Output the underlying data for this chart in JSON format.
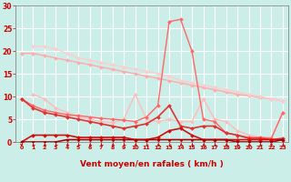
{
  "title": "",
  "xlabel": "Vent moyen/en rafales ( km/h )",
  "ylabel": "",
  "bg_color": "#cceee8",
  "grid_color": "#aadddd",
  "xlim": [
    -0.5,
    23.5
  ],
  "ylim": [
    0,
    30
  ],
  "yticks": [
    0,
    5,
    10,
    15,
    20,
    25,
    30
  ],
  "xticks": [
    0,
    1,
    2,
    3,
    4,
    5,
    6,
    7,
    8,
    9,
    10,
    11,
    12,
    13,
    14,
    15,
    16,
    17,
    18,
    19,
    20,
    21,
    22,
    23
  ],
  "lines": [
    {
      "x": [
        0,
        1,
        2,
        3,
        4,
        5,
        6,
        7,
        8,
        9,
        10,
        11,
        12,
        13,
        14,
        15,
        16,
        17,
        18,
        19,
        20,
        21,
        22,
        23
      ],
      "y": [
        19.5,
        19.5,
        19.0,
        18.5,
        18.0,
        17.5,
        17.0,
        16.5,
        16.0,
        15.5,
        15.0,
        14.5,
        14.0,
        13.5,
        13.0,
        12.5,
        12.0,
        11.5,
        11.0,
        10.5,
        10.2,
        9.8,
        9.5,
        9.0
      ],
      "color": "#ffaaaa",
      "lw": 1.0,
      "marker": "D",
      "ms": 2.0
    },
    {
      "x": [
        1,
        2,
        3,
        4,
        5,
        6,
        7,
        8,
        9,
        10,
        11,
        12,
        13,
        14,
        15,
        16,
        17,
        18,
        19,
        20,
        21,
        22,
        23
      ],
      "y": [
        21.0,
        21.0,
        20.5,
        19.5,
        18.5,
        18.0,
        17.5,
        17.0,
        16.5,
        16.0,
        15.5,
        15.0,
        14.5,
        13.5,
        13.0,
        12.5,
        12.0,
        11.5,
        11.0,
        10.5,
        10.0,
        9.5,
        9.0
      ],
      "color": "#ffcccc",
      "lw": 1.0,
      "marker": "D",
      "ms": 2.0
    },
    {
      "x": [
        1,
        2,
        3,
        4,
        5,
        6,
        7,
        8,
        9,
        10,
        11,
        12,
        13,
        14,
        15,
        16,
        17,
        18,
        19,
        20,
        21,
        22,
        23
      ],
      "y": [
        10.5,
        9.5,
        7.5,
        6.5,
        5.5,
        5.0,
        4.5,
        4.2,
        5.0,
        10.5,
        5.0,
        4.5,
        5.0,
        4.5,
        4.5,
        9.5,
        5.0,
        4.5,
        2.5,
        1.5,
        1.0,
        1.0,
        6.5
      ],
      "color": "#ffbbbb",
      "lw": 1.0,
      "marker": "D",
      "ms": 2.0
    },
    {
      "x": [
        0,
        1,
        2,
        3,
        4,
        5,
        6,
        7,
        8,
        9,
        10,
        11,
        12,
        13,
        14,
        15,
        16,
        17,
        18,
        19,
        20,
        21,
        22,
        23
      ],
      "y": [
        9.5,
        8.0,
        7.0,
        6.5,
        6.0,
        5.8,
        5.5,
        5.2,
        5.0,
        4.8,
        4.5,
        5.5,
        8.0,
        26.5,
        27.0,
        20.0,
        5.0,
        4.5,
        2.0,
        1.5,
        1.0,
        1.0,
        0.8,
        6.5
      ],
      "color": "#ff6666",
      "lw": 1.0,
      "marker": "D",
      "ms": 2.0
    },
    {
      "x": [
        0,
        1,
        2,
        3,
        4,
        5,
        6,
        7,
        8,
        9,
        10,
        11,
        12,
        13,
        14,
        15,
        16,
        17,
        18,
        19,
        20,
        21,
        22,
        23
      ],
      "y": [
        9.5,
        7.5,
        6.5,
        6.0,
        5.5,
        5.0,
        4.5,
        4.0,
        3.5,
        3.0,
        3.5,
        4.0,
        5.5,
        8.0,
        3.5,
        3.0,
        3.5,
        3.5,
        2.0,
        1.5,
        0.8,
        0.8,
        0.5,
        0.8
      ],
      "color": "#dd3333",
      "lw": 1.2,
      "marker": "D",
      "ms": 2.0
    },
    {
      "x": [
        0,
        1,
        2,
        3,
        4,
        5,
        6,
        7,
        8,
        9,
        10,
        11,
        12,
        13,
        14,
        15,
        16,
        17,
        18,
        19,
        20,
        21,
        22,
        23
      ],
      "y": [
        0.0,
        1.5,
        1.5,
        1.5,
        1.5,
        1.0,
        1.0,
        1.0,
        1.0,
        1.0,
        0.5,
        0.5,
        1.0,
        2.5,
        3.0,
        1.5,
        0.5,
        0.5,
        0.5,
        0.5,
        0.5,
        0.5,
        0.5,
        0.5
      ],
      "color": "#cc1111",
      "lw": 1.2,
      "marker": "D",
      "ms": 2.0
    },
    {
      "x": [
        0,
        1,
        2,
        3,
        4,
        5,
        6,
        7,
        8,
        9,
        10,
        11,
        12,
        13,
        14,
        15,
        16,
        17,
        18,
        19,
        20,
        21,
        22,
        23
      ],
      "y": [
        0.0,
        0.0,
        0.0,
        0.0,
        0.5,
        0.5,
        0.5,
        0.5,
        0.5,
        0.5,
        0.5,
        0.5,
        0.5,
        0.5,
        0.5,
        0.5,
        0.5,
        0.5,
        0.5,
        0.0,
        0.0,
        0.0,
        0.0,
        0.5
      ],
      "color": "#aa0000",
      "lw": 1.2,
      "marker": "D",
      "ms": 1.5
    }
  ],
  "arrow_angles": [
    90,
    135,
    135,
    135,
    135,
    135,
    135,
    135,
    135,
    135,
    135,
    180,
    135,
    180,
    135,
    135,
    135,
    135,
    135,
    135,
    135,
    135,
    90,
    135
  ],
  "arrow_color": "#cc0000",
  "tick_color": "#cc0000",
  "label_color": "#cc0000",
  "axis_color": "#888888"
}
